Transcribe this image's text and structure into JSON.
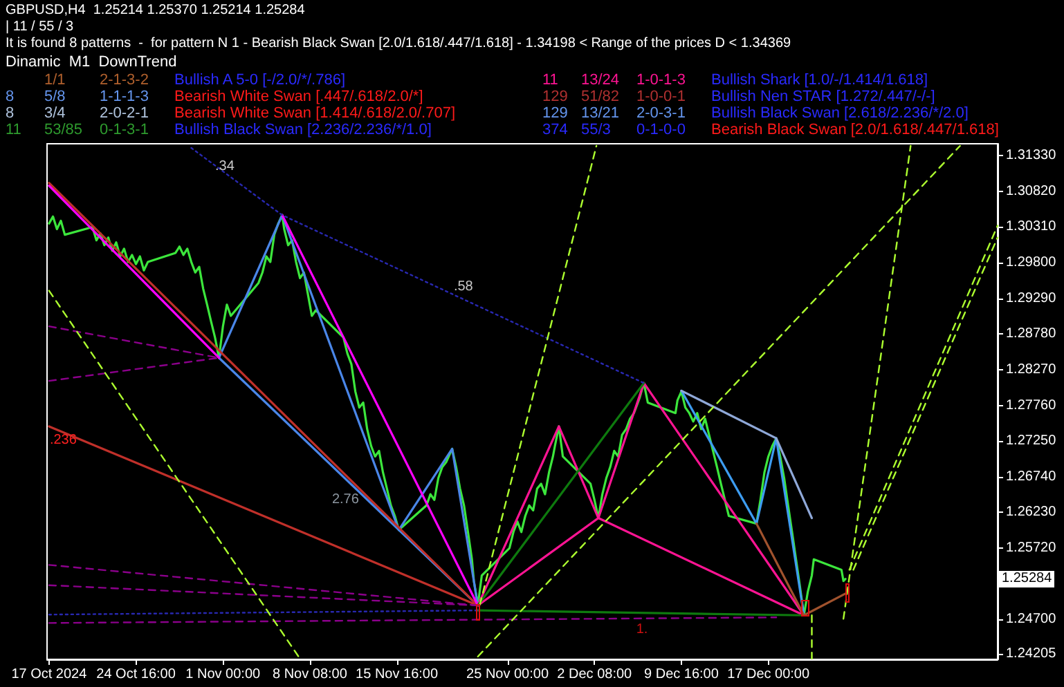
{
  "chart_data": {
    "type": "line",
    "title": "GBPUSD,H4  1.25214 1.25370 1.25214 1.25284",
    "subtitle": "| 11 / 55 / 3",
    "xlim": [
      "2024-10-17T04:00",
      "2025-01-05T08:00"
    ],
    "ylim": [
      1.2413,
      1.315
    ],
    "xticks": [
      {
        "value": "2024-10-17T08:00",
        "label": "17 Oct 2024"
      },
      {
        "value": "2024-10-24T16:00",
        "label": "24 Oct 16:00"
      },
      {
        "value": "2024-11-01T00:00",
        "label": "1 Nov 00:00"
      },
      {
        "value": "2024-11-08T08:00",
        "label": "8 Nov 08:00"
      },
      {
        "value": "2024-11-15T16:00",
        "label": "15 Nov 16:00"
      },
      {
        "value": "2024-11-25T00:00",
        "label": "25 Nov 00:00"
      },
      {
        "value": "2024-12-02T08:00",
        "label": "2 Dec 08:00"
      },
      {
        "value": "2024-12-09T16:00",
        "label": "9 Dec 16:00"
      },
      {
        "value": "2024-12-17T00:00",
        "label": "17 Dec 00:00"
      }
    ],
    "yticks": [
      {
        "value": 1.24205,
        "label": "1.24205"
      },
      {
        "value": 1.247,
        "label": "1.24700"
      },
      {
        "value": 1.2521,
        "label": null
      },
      {
        "value": 1.2572,
        "label": "1.25720"
      },
      {
        "value": 1.2623,
        "label": "1.26230"
      },
      {
        "value": 1.2674,
        "label": "1.26740"
      },
      {
        "value": 1.2725,
        "label": "1.27250"
      },
      {
        "value": 1.2776,
        "label": "1.27760"
      },
      {
        "value": 1.2827,
        "label": "1.28270"
      },
      {
        "value": 1.2878,
        "label": "1.28780"
      },
      {
        "value": 1.2929,
        "label": "1.29290"
      },
      {
        "value": 1.298,
        "label": "1.29800"
      },
      {
        "value": 1.3031,
        "label": "1.30310"
      },
      {
        "value": 1.3082,
        "label": "1.30820"
      },
      {
        "value": 1.3133,
        "label": "1.31330"
      }
    ],
    "series": [
      {
        "color": "#3ce63c",
        "x": [
          "2024-10-17T08:00",
          "2024-10-17T16:00",
          "2024-10-18T00:00",
          "2024-10-18T08:00",
          "2024-10-18T16:00",
          "2024-10-21T00:00",
          "2024-10-21T08:00",
          "2024-10-21T16:00",
          "2024-10-22T00:00",
          "2024-10-22T08:00",
          "2024-10-22T16:00",
          "2024-10-23T00:00",
          "2024-10-23T08:00",
          "2024-10-23T16:00",
          "2024-10-24T00:00",
          "2024-10-24T08:00",
          "2024-10-24T16:00",
          "2024-10-25T00:00",
          "2024-10-25T08:00",
          "2024-10-25T16:00",
          "2024-10-28T00:00",
          "2024-10-28T08:00",
          "2024-10-28T16:00",
          "2024-10-29T00:00",
          "2024-10-29T08:00",
          "2024-10-29T16:00",
          "2024-10-30T00:00",
          "2024-10-30T08:00",
          "2024-10-30T16:00",
          "2024-10-31T00:00",
          "2024-10-31T08:00",
          "2024-10-31T16:00",
          "2024-11-01T00:00",
          "2024-11-01T08:00",
          "2024-11-01T16:00",
          "2024-11-04T00:00",
          "2024-11-04T08:00",
          "2024-11-04T16:00",
          "2024-11-05T00:00",
          "2024-11-05T08:00",
          "2024-11-05T16:00",
          "2024-11-06T00:00",
          "2024-11-06T04:00",
          "2024-11-06T12:00",
          "2024-11-06T20:00",
          "2024-11-07T04:00",
          "2024-11-07T12:00",
          "2024-11-07T20:00",
          "2024-11-08T04:00",
          "2024-11-08T12:00",
          "2024-11-08T20:00",
          "2024-11-11T04:00",
          "2024-11-11T12:00",
          "2024-11-11T20:00",
          "2024-11-12T04:00",
          "2024-11-12T12:00",
          "2024-11-12T20:00",
          "2024-11-13T04:00",
          "2024-11-13T12:00",
          "2024-11-13T20:00",
          "2024-11-14T04:00",
          "2024-11-14T12:00",
          "2024-11-14T20:00",
          "2024-11-15T04:00",
          "2024-11-15T12:00",
          "2024-11-15T20:00",
          "2024-11-18T04:00",
          "2024-11-18T12:00",
          "2024-11-18T20:00",
          "2024-11-19T04:00",
          "2024-11-19T12:00",
          "2024-11-19T20:00",
          "2024-11-20T08:00",
          "2024-11-20T16:00",
          "2024-11-21T00:00",
          "2024-11-21T08:00",
          "2024-11-21T16:00",
          "2024-11-22T00:00",
          "2024-11-22T04:00",
          "2024-11-22T12:00",
          "2024-11-22T20:00",
          "2024-11-25T04:00",
          "2024-11-25T12:00",
          "2024-11-25T20:00",
          "2024-11-26T04:00",
          "2024-11-26T12:00",
          "2024-11-26T20:00",
          "2024-11-27T04:00",
          "2024-11-27T12:00",
          "2024-11-27T20:00",
          "2024-11-28T04:00",
          "2024-11-28T12:00",
          "2024-11-28T20:00",
          "2024-11-29T00:00",
          "2024-11-29T08:00",
          "2024-11-29T16:00",
          "2024-12-02T00:00",
          "2024-12-02T08:00",
          "2024-12-02T16:00",
          "2024-12-03T00:00",
          "2024-12-03T08:00",
          "2024-12-03T16:00",
          "2024-12-04T00:00",
          "2024-12-04T08:00",
          "2024-12-04T16:00",
          "2024-12-05T00:00",
          "2024-12-05T08:00",
          "2024-12-05T16:00",
          "2024-12-06T00:00",
          "2024-12-06T04:00",
          "2024-12-06T12:00",
          "2024-12-06T20:00",
          "2024-12-09T04:00",
          "2024-12-09T08:00",
          "2024-12-09T16:00",
          "2024-12-10T00:00",
          "2024-12-10T08:00",
          "2024-12-10T16:00",
          "2024-12-11T00:00",
          "2024-12-11T08:00",
          "2024-12-11T16:00",
          "2024-12-12T00:00",
          "2024-12-12T08:00",
          "2024-12-12T16:00",
          "2024-12-13T00:00",
          "2024-12-13T08:00",
          "2024-12-13T16:00",
          "2024-12-16T00:00",
          "2024-12-16T08:00",
          "2024-12-16T16:00",
          "2024-12-17T00:00",
          "2024-12-17T08:00",
          "2024-12-17T16:00",
          "2024-12-18T00:00",
          "2024-12-18T08:00",
          "2024-12-18T16:00",
          "2024-12-19T00:00",
          "2024-12-19T08:00",
          "2024-12-19T16:00",
          "2024-12-20T00:00",
          "2024-12-20T08:00",
          "2024-12-20T16:00",
          "2024-12-20T20:00",
          "2024-12-23T04:00",
          "2024-12-23T08:00",
          "2024-12-23T12:00"
        ],
        "values": [
          1.3036,
          1.3046,
          1.3028,
          1.304,
          1.302,
          1.3031,
          1.3012,
          1.3022,
          1.3005,
          1.3016,
          1.2997,
          1.3009,
          1.2989,
          1.3,
          1.2981,
          1.2991,
          1.2978,
          1.2989,
          1.2969,
          1.2981,
          1.2994,
          1.3003,
          1.2991,
          1.3,
          1.2981,
          1.2966,
          1.2974,
          1.2943,
          1.292,
          1.2896,
          1.2873,
          1.2844,
          1.2889,
          1.292,
          1.2904,
          1.2951,
          1.2966,
          1.2989,
          1.2981,
          1.302,
          1.3036,
          1.3048,
          1.3028,
          1.3005,
          1.3012,
          1.2981,
          1.2958,
          1.2966,
          1.2935,
          1.2904,
          1.2912,
          1.2873,
          1.285,
          1.2835,
          1.2796,
          1.2773,
          1.278,
          1.2742,
          1.2718,
          1.2703,
          1.2711,
          1.268,
          1.2657,
          1.2633,
          1.2618,
          1.2598,
          1.2633,
          1.2649,
          1.2641,
          1.2672,
          1.2688,
          1.2695,
          1.2714,
          1.2688,
          1.2657,
          1.2633,
          1.2595,
          1.2556,
          1.2525,
          1.249,
          1.2533,
          1.2572,
          1.2595,
          1.261,
          1.2595,
          1.2618,
          1.2633,
          1.2626,
          1.2657,
          1.2664,
          1.2649,
          1.268,
          1.2703,
          1.2718,
          1.2746,
          1.2703,
          1.2664,
          1.2641,
          1.2615,
          1.2649,
          1.2672,
          1.2688,
          1.2711,
          1.2703,
          1.2734,
          1.2742,
          1.2757,
          1.2765,
          1.278,
          1.2788,
          1.2808,
          1.278,
          1.2765,
          1.2783,
          1.2796,
          1.2773,
          1.2765,
          1.2753,
          1.2765,
          1.2742,
          1.2757,
          1.2734,
          1.2711,
          1.2688,
          1.2664,
          1.2641,
          1.2618,
          1.2607,
          1.2641,
          1.268,
          1.2703,
          1.2718,
          1.2729,
          1.2703,
          1.2672,
          1.2633,
          1.2595,
          1.2556,
          1.2517,
          1.2476,
          1.251,
          1.2533,
          1.2556,
          1.2541,
          1.2525,
          1.2528
        ]
      },
      {
        "color": "#4a86e8",
        "x": [
          "2024-10-31T16:00",
          "2024-11-06T00:00",
          "2024-11-15T20:00",
          "2024-11-20T08:00",
          "2024-11-22T12:00"
        ],
        "values": [
          1.2844,
          1.3048,
          1.2598,
          1.2714,
          1.249
        ]
      },
      {
        "color": "#4a86e8",
        "x": [
          "2024-10-31T16:00",
          "2024-11-22T12:00"
        ],
        "values": [
          1.2844,
          1.249
        ]
      },
      {
        "color": "#c0302a",
        "x": [
          "2024-10-17T08:00",
          "2024-11-22T12:00"
        ],
        "values": [
          1.3094,
          1.249
        ]
      },
      {
        "color": "#c0302a",
        "x": [
          "2024-10-17T08:00",
          "2024-11-22T12:00"
        ],
        "values": [
          1.2746,
          1.249
        ]
      },
      {
        "color": "#ff00ff",
        "x": [
          "2024-10-17T08:00",
          "2024-10-31T16:00"
        ],
        "values": [
          1.309,
          1.2844
        ]
      },
      {
        "color": "#ff00ff",
        "x": [
          "2024-11-06T00:00",
          "2024-11-22T12:00"
        ],
        "values": [
          1.3048,
          1.249
        ]
      },
      {
        "color": "#ff1493",
        "x": [
          "2024-11-22T12:00",
          "2024-11-29T08:00",
          "2024-12-02T16:00",
          "2024-12-06T12:00",
          "2024-12-20T00:00"
        ],
        "values": [
          1.249,
          1.2746,
          1.2615,
          1.2808,
          1.2476
        ]
      },
      {
        "color": "#ff1493",
        "x": [
          "2024-11-22T12:00",
          "2024-12-02T16:00",
          "2024-12-20T00:00"
        ],
        "values": [
          1.249,
          1.2615,
          1.2476
        ]
      },
      {
        "color": "#0e7a0e",
        "x": [
          "2024-11-22T12:00",
          "2024-12-06T12:00"
        ],
        "values": [
          1.249,
          1.2808
        ]
      },
      {
        "color": "#0e7a0e",
        "x": [
          "2024-11-22T12:00",
          "2024-12-20T00:00"
        ],
        "values": [
          1.2483,
          1.2476
        ]
      },
      {
        "color": "#3d9cf0",
        "x": [
          "2024-12-09T16:00",
          "2024-12-16T00:00",
          "2024-12-17T16:00",
          "2024-12-20T00:00"
        ],
        "values": [
          1.2797,
          1.2607,
          1.2729,
          1.2476
        ]
      },
      {
        "color": "#8fa8d8",
        "x": [
          "2024-12-09T16:00",
          "2024-12-17T16:00",
          "2024-12-20T16:00"
        ],
        "values": [
          1.2797,
          1.2729,
          1.2615
        ]
      },
      {
        "color": "#a0522d",
        "x": [
          "2024-12-16T00:00",
          "2024-12-20T00:00",
          "2024-12-23T12:00"
        ],
        "values": [
          1.2607,
          1.2476,
          1.2507
        ]
      },
      {
        "color": "#2828b0",
        "line_style": "dotted",
        "x": [
          "2024-10-29T08:00",
          "2024-11-06T00:00",
          "2024-12-06T12:00"
        ],
        "values": [
          1.3144,
          1.3048,
          1.2808
        ]
      },
      {
        "color": "#2828b0",
        "line_style": "dotted",
        "x": [
          "2024-10-17T08:00",
          "2024-11-22T12:00"
        ],
        "values": [
          1.2477,
          1.2483
        ]
      },
      {
        "color": "#8b008b",
        "line_style": "dashed",
        "x": [
          "2024-10-17T08:00",
          "2024-10-31T16:00"
        ],
        "values": [
          1.2889,
          1.2844
        ]
      },
      {
        "color": "#8b008b",
        "line_style": "dashed",
        "x": [
          "2024-10-17T08:00",
          "2024-10-31T16:00"
        ],
        "values": [
          1.2811,
          1.2844
        ]
      },
      {
        "color": "#8b008b",
        "line_style": "dashed",
        "x": [
          "2024-10-17T08:00",
          "2024-11-22T12:00"
        ],
        "values": [
          1.2548,
          1.249
        ]
      },
      {
        "color": "#8b008b",
        "line_style": "dashed",
        "x": [
          "2024-10-17T08:00",
          "2024-11-22T12:00"
        ],
        "values": [
          1.2519,
          1.249
        ]
      },
      {
        "color": "#8b008b",
        "line_style": "dashed",
        "x": [
          "2024-10-17T08:00",
          "2024-12-17T16:00"
        ],
        "values": [
          1.2465,
          1.2473
        ]
      },
      {
        "color": "#adff2f",
        "line_style": "dashed",
        "x": [
          "2024-10-17T08:00",
          "2024-11-07T12:00"
        ],
        "values": [
          1.294,
          1.2414
        ]
      },
      {
        "color": "#adff2f",
        "line_style": "dashed",
        "x": [
          "2024-11-22T12:00",
          "2025-01-02T04:00"
        ],
        "values": [
          1.2417,
          1.3147
        ]
      },
      {
        "color": "#adff2f",
        "line_style": "dashed",
        "x": [
          "2024-11-22T16:00",
          "2024-12-02T12:00"
        ],
        "values": [
          1.2491,
          1.3147
        ]
      },
      {
        "color": "#adff2f",
        "line_style": "dashed",
        "x": [
          "2024-12-23T08:00",
          "2024-12-29T00:00"
        ],
        "values": [
          1.2471,
          1.3147
        ]
      },
      {
        "color": "#adff2f",
        "line_style": "dashed",
        "x": [
          "2024-12-23T20:00",
          "2025-01-05T08:00"
        ],
        "values": [
          1.2541,
          1.3033
        ]
      },
      {
        "color": "#adff2f",
        "line_style": "dashed",
        "x": [
          "2024-12-24T04:00",
          "2025-01-05T08:00"
        ],
        "values": [
          1.2541,
          1.3016
        ]
      },
      {
        "color": "#adff2f",
        "line_style": "dashed",
        "x": [
          "2024-12-20T16:00",
          "2024-12-20T16:00"
        ],
        "values": [
          1.2476,
          1.2414
        ]
      }
    ],
    "annotations": [
      "It is found 8 patterns  -  for pattern N 1 - Bearish Black Swan [2.0/1.618/.447/1.618] - 1.34198 < Range of the prices D < 1.34369",
      "Dinamic  M1  DownTrend",
      "1/1",
      "2-1-3-2",
      "Bullish A 5-0 [-/2.0/*/.786]",
      "8",
      "5/8",
      "1-1-1-3",
      "Bearish White Swan [.447/.618/2.0/*]",
      "8",
      "3/4",
      "2-0-2-1",
      "Bearish White Swan [1.414/.618/2.0/.707]",
      "11",
      "53/85",
      "0-1-3-1",
      "Bullish Black Swan [2.236/2.236/*/1.0]",
      "11",
      "13/24",
      "1-0-1-3",
      "Bullish Shark [1.0/-/1.414/1.618]",
      "129",
      "51/82",
      "1-0-0-1",
      "Bullish Nen STAR [1.272/.447/-/-]",
      "129",
      "13/21",
      "2-0-3-1",
      "Bullish Black Swan [2.618/2.236/*/2.0]",
      "374",
      "55/3",
      "0-1-0-0",
      "Bearish Black Swan [2.0/1.618/.447/1.618]",
      ".34",
      ".58",
      "2.76",
      ".236",
      "1.",
      "1.25284"
    ]
  }
}
